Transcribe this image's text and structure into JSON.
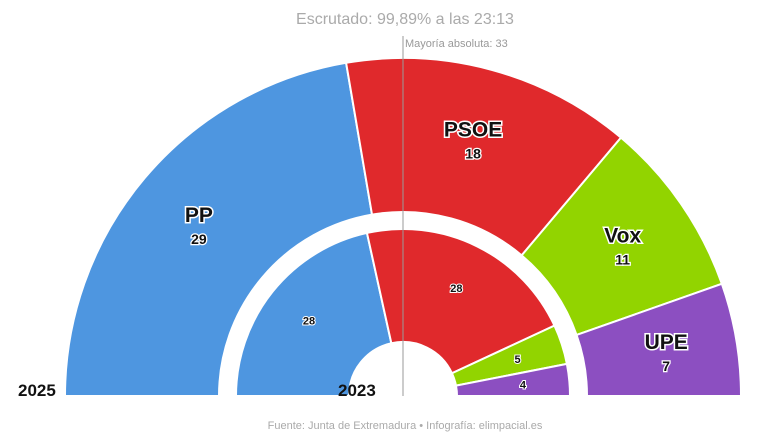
{
  "chart_data": {
    "type": "parliament-hemicycle",
    "title": "Escrutado: 99,89% a las 23:13",
    "majority_label": "Mayoría absoluta: 33",
    "majority": 33,
    "total_seats": 65,
    "source": "Fuente: Junta de Extremadura • Infografía: elimpacial.es",
    "outer": {
      "year": "2025",
      "series": [
        {
          "name": "PP",
          "seats": 29,
          "color": "#4e96e0"
        },
        {
          "name": "PSOE",
          "seats": 18,
          "color": "#e0292c"
        },
        {
          "name": "Vox",
          "seats": 11,
          "color": "#92d400"
        },
        {
          "name": "UPE",
          "seats": 7,
          "color": "#8c4fc1"
        }
      ]
    },
    "inner": {
      "year": "2023",
      "series": [
        {
          "name": "PP",
          "seats": 28,
          "color": "#4e96e0"
        },
        {
          "name": "PSOE",
          "seats": 28,
          "color": "#e0292c"
        },
        {
          "name": "Vox",
          "seats": 5,
          "color": "#92d400"
        },
        {
          "name": "UPE",
          "seats": 4,
          "color": "#8c4fc1"
        }
      ]
    }
  }
}
